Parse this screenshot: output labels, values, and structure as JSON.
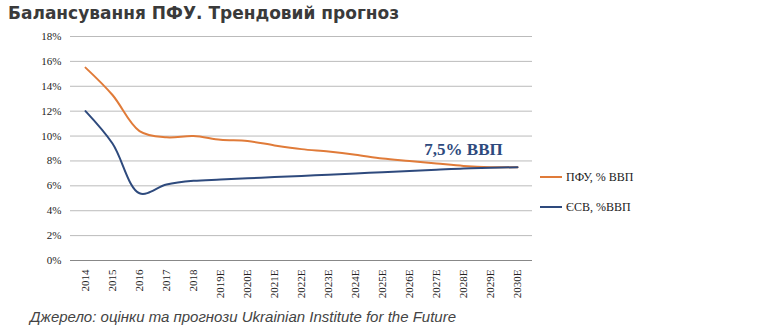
{
  "chart_data": {
    "type": "line",
    "title": "Балансування ПФУ. Трендовий прогноз",
    "caption": "Джерело: оцінки та прогнози Ukrainian Institute for the Future",
    "categories": [
      "2014",
      "2015",
      "2016",
      "2017",
      "2018",
      "2019E",
      "2020E",
      "2021E",
      "2022E",
      "2023E",
      "2024E",
      "2025E",
      "2026E",
      "2027E",
      "2028E",
      "2029E",
      "2030E"
    ],
    "series": [
      {
        "name": "ПФУ, % ВВП",
        "color": "#e07b39",
        "values": [
          15.5,
          13.3,
          10.4,
          9.9,
          10.0,
          9.7,
          9.6,
          9.25,
          8.95,
          8.75,
          8.5,
          8.2,
          8.0,
          7.8,
          7.6,
          7.5,
          7.5
        ]
      },
      {
        "name": "ЄСВ, %ВВП",
        "color": "#2e4a7d",
        "values": [
          12.0,
          9.4,
          5.4,
          6.1,
          6.4,
          6.5,
          6.6,
          6.7,
          6.8,
          6.9,
          7.0,
          7.1,
          7.2,
          7.3,
          7.4,
          7.45,
          7.5
        ]
      }
    ],
    "annotations": [
      {
        "text": "7,5% ВВП",
        "x": "2028E",
        "y": 8.6,
        "color": "#2e4a7d"
      }
    ],
    "ylim": [
      0,
      18
    ],
    "yticks": [
      {
        "value": 0,
        "label": "0%"
      },
      {
        "value": 2,
        "label": "2%"
      },
      {
        "value": 4,
        "label": "4%"
      },
      {
        "value": 6,
        "label": "6%"
      },
      {
        "value": 8,
        "label": "8%"
      },
      {
        "value": 10,
        "label": "10%"
      },
      {
        "value": 12,
        "label": "12%"
      },
      {
        "value": 14,
        "label": "14%"
      },
      {
        "value": 16,
        "label": "16%"
      },
      {
        "value": 18,
        "label": "18%"
      }
    ],
    "grid": true,
    "legend": "right"
  }
}
